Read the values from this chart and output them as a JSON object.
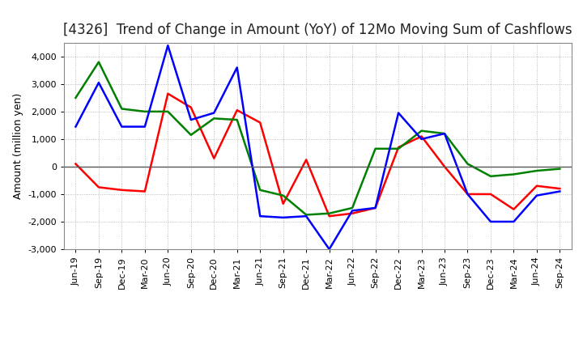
{
  "title": "[4326]  Trend of Change in Amount (YoY) of 12Mo Moving Sum of Cashflows",
  "xlabel": "",
  "ylabel": "Amount (million yen)",
  "ylim": [
    -3000,
    4500
  ],
  "yticks": [
    -3000,
    -2000,
    -1000,
    0,
    1000,
    2000,
    3000,
    4000
  ],
  "x_labels": [
    "Jun-19",
    "Sep-19",
    "Dec-19",
    "Mar-20",
    "Jun-20",
    "Sep-20",
    "Dec-20",
    "Mar-21",
    "Jun-21",
    "Sep-21",
    "Dec-21",
    "Mar-22",
    "Jun-22",
    "Sep-22",
    "Dec-22",
    "Mar-23",
    "Jun-23",
    "Sep-23",
    "Dec-23",
    "Mar-24",
    "Jun-24",
    "Sep-24"
  ],
  "operating": [
    100,
    -750,
    -850,
    -900,
    2650,
    2150,
    300,
    2050,
    1600,
    -1350,
    250,
    -1800,
    -1700,
    -1500,
    700,
    1100,
    0,
    -1000,
    -1000,
    -1550,
    -700,
    -800
  ],
  "investing": [
    2500,
    3800,
    2100,
    2000,
    2000,
    1150,
    1750,
    1700,
    -850,
    -1050,
    -1750,
    -1700,
    -1500,
    650,
    650,
    1300,
    1200,
    100,
    -350,
    -280,
    -150,
    -80
  ],
  "free": [
    1450,
    3050,
    1450,
    1450,
    4400,
    1700,
    1950,
    3600,
    -1800,
    -1850,
    -1800,
    -3000,
    -1600,
    -1500,
    1950,
    1000,
    1200,
    -1000,
    -2000,
    -2000,
    -1050,
    -900
  ],
  "op_color": "#ff0000",
  "inv_color": "#008000",
  "free_color": "#0000ff",
  "bg_color": "#ffffff",
  "grid_color": "#aaaaaa",
  "zero_line_color": "#555555",
  "title_fontsize": 12,
  "label_fontsize": 9,
  "tick_fontsize": 8,
  "legend_fontsize": 9.5,
  "line_width": 1.8
}
